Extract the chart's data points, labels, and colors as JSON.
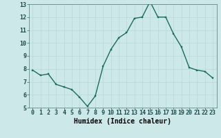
{
  "x": [
    0,
    1,
    2,
    3,
    4,
    5,
    6,
    7,
    8,
    9,
    10,
    11,
    12,
    13,
    14,
    15,
    16,
    17,
    18,
    19,
    20,
    21,
    22,
    23
  ],
  "y": [
    7.9,
    7.5,
    7.6,
    6.8,
    6.6,
    6.4,
    5.8,
    5.1,
    5.9,
    8.2,
    9.5,
    10.4,
    10.8,
    11.9,
    12.0,
    13.2,
    12.0,
    12.0,
    10.7,
    9.7,
    8.1,
    7.9,
    7.8,
    7.3
  ],
  "xlabel": "Humidex (Indice chaleur)",
  "ylim": [
    5,
    13
  ],
  "xlim_min": -0.5,
  "xlim_max": 23.5,
  "yticks": [
    5,
    6,
    7,
    8,
    9,
    10,
    11,
    12,
    13
  ],
  "xticks": [
    0,
    1,
    2,
    3,
    4,
    5,
    6,
    7,
    8,
    9,
    10,
    11,
    12,
    13,
    14,
    15,
    16,
    17,
    18,
    19,
    20,
    21,
    22,
    23
  ],
  "line_color": "#1a6b5a",
  "marker_color": "#1a6b5a",
  "bg_color": "#cce8e8",
  "grid_color": "#b8d8d8",
  "xlabel_fontsize": 7,
  "tick_fontsize": 6,
  "linewidth": 1.0,
  "markersize": 2.0
}
